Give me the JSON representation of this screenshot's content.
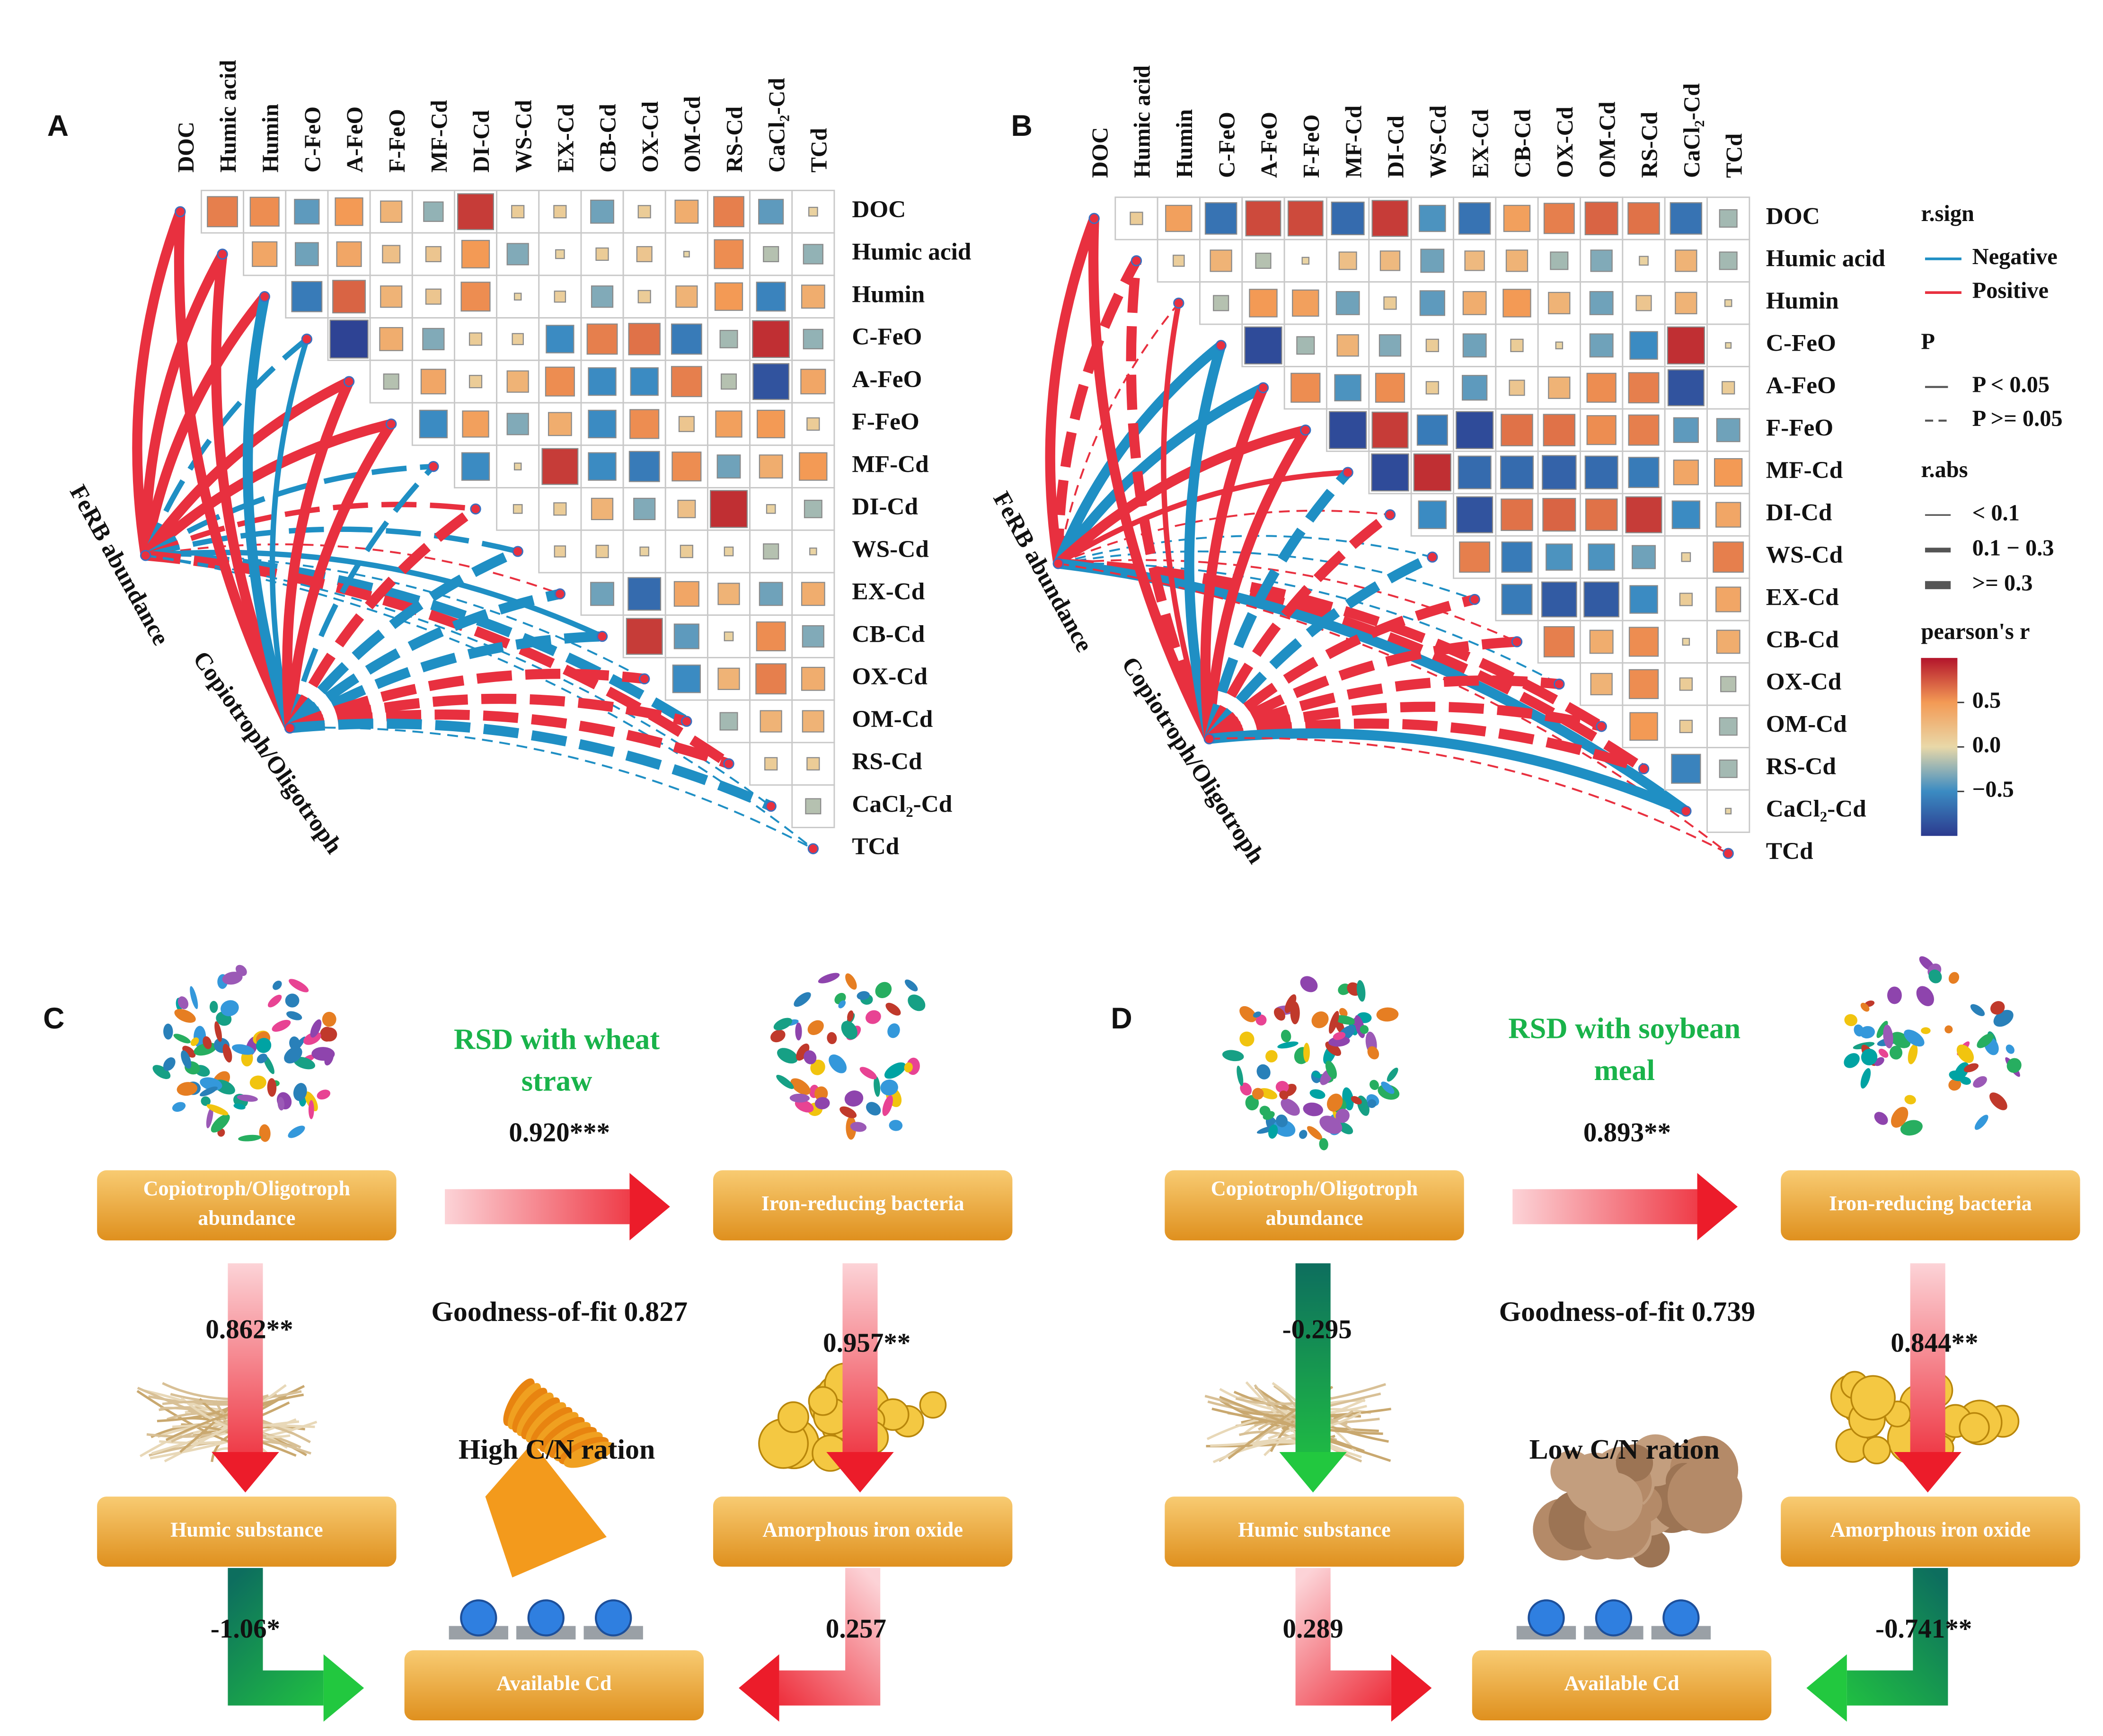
{
  "variables": [
    "DOC",
    "Humic acid",
    "Humin",
    "C-FeO",
    "A-FeO",
    "F-FeO",
    "MF-Cd",
    "DI-Cd",
    "WS-Cd",
    "EX-Cd",
    "CB-Cd",
    "OX-Cd",
    "OM-Cd",
    "RS-Cd",
    "CaCl₂-Cd",
    "TCd"
  ],
  "panels": [
    {
      "label": "A",
      "matrix": [
        [
          0.6,
          0.55,
          -0.4,
          0.5,
          0.3,
          -0.25,
          0.85,
          0.1,
          0.1,
          -0.35,
          0.1,
          0.35,
          0.6,
          -0.4,
          0.05
        ],
        [
          0.4,
          -0.35,
          0.4,
          0.2,
          0.15,
          0.5,
          -0.3,
          0.05,
          0.1,
          0.15,
          0.02,
          0.55,
          -0.15,
          -0.25
        ],
        [
          -0.6,
          0.7,
          0.3,
          0.15,
          0.55,
          0.03,
          0.08,
          -0.3,
          0.1,
          0.3,
          0.5,
          -0.55,
          0.35
        ],
        [
          -0.95,
          0.35,
          -0.3,
          0.1,
          0.08,
          -0.5,
          0.6,
          0.65,
          -0.6,
          -0.2,
          0.9,
          -0.25
        ],
        [
          -0.15,
          0.4,
          0.1,
          0.3,
          0.55,
          -0.5,
          -0.5,
          0.6,
          -0.15,
          -0.85,
          0.4
        ],
        [
          -0.5,
          0.45,
          -0.3,
          0.35,
          -0.5,
          0.55,
          0.15,
          0.45,
          0.5,
          0.1
        ],
        [
          -0.5,
          0.03,
          0.85,
          -0.5,
          -0.6,
          0.55,
          -0.35,
          0.35,
          0.5
        ],
        [
          0.05,
          0.1,
          0.3,
          -0.3,
          0.2,
          0.9,
          0.05,
          -0.2
        ],
        [
          0.08,
          0.1,
          0.05,
          0.1,
          0.05,
          -0.15,
          0.03
        ],
        [
          -0.35,
          -0.7,
          0.4,
          0.3,
          -0.35,
          0.35
        ],
        [
          0.85,
          -0.4,
          0.05,
          0.55,
          -0.3
        ],
        [
          -0.5,
          0.3,
          0.6,
          0.35
        ],
        [
          -0.2,
          0.3,
          0.3
        ],
        [
          0.1,
          0.1
        ],
        [
          -0.15
        ]
      ],
      "sources": [
        {
          "name": "FeRB abundance",
          "links": [
            [
              "Positive",
              "P < 0.05",
              ">= 0.3"
            ],
            [
              "Positive",
              "P < 0.05",
              ">= 0.3"
            ],
            [
              "Positive",
              "P < 0.05",
              ">= 0.3"
            ],
            [
              "Negative",
              "P >= 0.05",
              "0.1 − 0.3"
            ],
            [
              "Positive",
              "P < 0.05",
              ">= 0.3"
            ],
            [
              "Positive",
              "P < 0.05",
              ">= 0.3"
            ],
            [
              "Negative",
              "P >= 0.05",
              "0.1 − 0.3"
            ],
            [
              "Positive",
              "P >= 0.05",
              "0.1 − 0.3"
            ],
            [
              "Negative",
              "P >= 0.05",
              "0.1 − 0.3"
            ],
            [
              "Positive",
              "P >= 0.05",
              "< 0.1"
            ],
            [
              "Negative",
              "P < 0.05",
              "0.1 − 0.3"
            ],
            [
              "Negative",
              "P >= 0.05",
              "< 0.1"
            ],
            [
              "Negative",
              "P >= 0.05",
              ">= 0.3"
            ],
            [
              "Positive",
              "P >= 0.05",
              ">= 0.3"
            ],
            [
              "Negative",
              "P >= 0.05",
              "< 0.1"
            ],
            [
              "Negative",
              "P >= 0.05",
              "< 0.1"
            ]
          ]
        },
        {
          "name": "Copiotroph/Oligotroph",
          "links": [
            [
              "Positive",
              "P < 0.05",
              ">= 0.3"
            ],
            [
              "Positive",
              "P < 0.05",
              ">= 0.3"
            ],
            [
              "Negative",
              "P < 0.05",
              ">= 0.3"
            ],
            [
              "Negative",
              "P < 0.05",
              "0.1 − 0.3"
            ],
            [
              "Positive",
              "P < 0.05",
              ">= 0.3"
            ],
            [
              "Positive",
              "P < 0.05",
              ">= 0.3"
            ],
            [
              "Negative",
              "P >= 0.05",
              "0.1 − 0.3"
            ],
            [
              "Positive",
              "P >= 0.05",
              ">= 0.3"
            ],
            [
              "Negative",
              "P >= 0.05",
              ">= 0.3"
            ],
            [
              "Negative",
              "P >= 0.05",
              ">= 0.3"
            ],
            [
              "Negative",
              "P >= 0.05",
              ">= 0.3"
            ],
            [
              "Positive",
              "P >= 0.05",
              ">= 0.3"
            ],
            [
              "Positive",
              "P >= 0.05",
              ">= 0.3"
            ],
            [
              "Positive",
              "P >= 0.05",
              ">= 0.3"
            ],
            [
              "Negative",
              "P >= 0.05",
              ">= 0.3"
            ],
            [
              "Negative",
              "P >= 0.05",
              "< 0.1"
            ]
          ]
        }
      ]
    },
    {
      "label": "B",
      "matrix": [
        [
          0.1,
          0.45,
          -0.65,
          0.8,
          0.8,
          -0.7,
          0.85,
          -0.45,
          -0.65,
          0.45,
          0.6,
          0.7,
          0.65,
          -0.65,
          -0.2
        ],
        [
          0.08,
          0.3,
          -0.15,
          0.03,
          0.2,
          0.25,
          -0.35,
          0.25,
          0.3,
          -0.2,
          -0.3,
          0.05,
          0.3,
          -0.2
        ],
        [
          -0.15,
          0.5,
          0.45,
          -0.35,
          0.1,
          -0.4,
          0.35,
          0.5,
          0.3,
          -0.35,
          0.15,
          0.3,
          0.03
        ],
        [
          -0.9,
          -0.2,
          0.3,
          -0.3,
          0.1,
          -0.35,
          0.1,
          0.03,
          -0.35,
          -0.5,
          0.9,
          0.02
        ],
        [
          0.55,
          -0.45,
          0.55,
          0.1,
          -0.4,
          0.15,
          0.3,
          0.55,
          0.6,
          -0.85,
          0.1
        ],
        [
          -0.9,
          0.85,
          -0.6,
          -0.9,
          0.65,
          0.65,
          0.55,
          0.6,
          -0.4,
          -0.35
        ],
        [
          -0.9,
          0.9,
          -0.7,
          -0.7,
          -0.75,
          -0.7,
          -0.6,
          0.4,
          0.5
        ],
        [
          -0.5,
          -0.85,
          0.65,
          0.7,
          0.65,
          0.85,
          -0.5,
          0.4
        ],
        [
          0.6,
          -0.6,
          -0.45,
          -0.45,
          -0.35,
          0.05,
          0.6
        ],
        [
          -0.6,
          -0.8,
          -0.8,
          -0.5,
          0.1,
          0.4
        ],
        [
          0.6,
          0.35,
          0.55,
          0.03,
          0.35
        ],
        [
          0.3,
          0.55,
          0.1,
          -0.15
        ],
        [
          0.5,
          0.1,
          -0.2
        ],
        [
          -0.55,
          -0.2
        ],
        [
          0.02
        ]
      ],
      "sources": [
        {
          "name": "FeRB abundance",
          "links": [
            [
              "Positive",
              "P < 0.05",
              ">= 0.3"
            ],
            [
              "Positive",
              "P >= 0.05",
              ">= 0.3"
            ],
            [
              "Positive",
              "P >= 0.05",
              "< 0.1"
            ],
            [
              "Negative",
              "P < 0.05",
              ">= 0.3"
            ],
            [
              "Negative",
              "P < 0.05",
              ">= 0.3"
            ],
            [
              "Positive",
              "P < 0.05",
              ">= 0.3"
            ],
            [
              "Positive",
              "P < 0.05",
              "0.1 − 0.3"
            ],
            [
              "Positive",
              "P >= 0.05",
              "< 0.1"
            ],
            [
              "Negative",
              "P >= 0.05",
              "< 0.1"
            ],
            [
              "Negative",
              "P >= 0.05",
              "< 0.1"
            ],
            [
              "Positive",
              "P >= 0.05",
              "< 0.1"
            ],
            [
              "Negative",
              "P >= 0.05",
              "< 0.1"
            ],
            [
              "Positive",
              "P >= 0.05",
              ">= 0.3"
            ],
            [
              "Positive",
              "P >= 0.05",
              ">= 0.3"
            ],
            [
              "Negative",
              "P < 0.05",
              ">= 0.3"
            ],
            [
              "Positive",
              "P >= 0.05",
              "< 0.1"
            ]
          ]
        },
        {
          "name": "Copiotroph/Oligotroph",
          "links": [
            [
              "Positive",
              "P < 0.05",
              ">= 0.3"
            ],
            [
              "Positive",
              "P >= 0.05",
              ">= 0.3"
            ],
            [
              "Positive",
              "P < 0.05",
              "0.1 − 0.3"
            ],
            [
              "Negative",
              "P < 0.05",
              ">= 0.3"
            ],
            [
              "Positive",
              "P < 0.05",
              ">= 0.3"
            ],
            [
              "Positive",
              "P < 0.05",
              ">= 0.3"
            ],
            [
              "Negative",
              "P >= 0.05",
              ">= 0.3"
            ],
            [
              "Positive",
              "P >= 0.05",
              ">= 0.3"
            ],
            [
              "Negative",
              "P >= 0.05",
              ">= 0.3"
            ],
            [
              "Positive",
              "P >= 0.05",
              ">= 0.3"
            ],
            [
              "Positive",
              "P >= 0.05",
              ">= 0.3"
            ],
            [
              "Positive",
              "P >= 0.05",
              ">= 0.3"
            ],
            [
              "Positive",
              "P >= 0.05",
              ">= 0.3"
            ],
            [
              "Positive",
              "P >= 0.05",
              ">= 0.3"
            ],
            [
              "Negative",
              "P < 0.05",
              ">= 0.3"
            ],
            [
              "Positive",
              "P >= 0.05",
              "< 0.1"
            ]
          ]
        }
      ]
    }
  ],
  "legend": {
    "sign": {
      "title": "r.sign",
      "items": [
        "Negative",
        "Positive"
      ],
      "colors": [
        "#1f8fc4",
        "#e8303f"
      ]
    },
    "p": {
      "title": "P",
      "items": [
        "P < 0.05",
        "P >= 0.05"
      ]
    },
    "abs": {
      "title": "r.abs",
      "items": [
        "< 0.1",
        "0.1 − 0.3",
        ">= 0.3"
      ]
    },
    "colorbar": {
      "title": "pearson's r",
      "lim": [
        -1,
        1
      ],
      "ticks": [
        0.5,
        {
          "value": 0,
          "label": "0.0"
        },
        {
          "value": -0.5,
          "label": "−0.5"
        }
      ],
      "colors": [
        "#2c3b8f",
        "#3b8bc2",
        "#e9d8a8",
        "#f39a55",
        "#b3142b"
      ]
    }
  },
  "path_models": [
    {
      "label": "C",
      "title": [
        "RSD with wheat",
        "straw"
      ],
      "goodness_of_fit": "Goodness-of-fit 0.827",
      "cn_ratio": "High C/N ration",
      "boxes": {
        "community": [
          "Copiotroph/Oligotroph",
          "abundance"
        ],
        "ferb": [
          "Iron-reducing bacteria"
        ],
        "humic": [
          "Humic substance"
        ],
        "iron_oxide": [
          "Amorphous iron oxide"
        ],
        "cd": [
          "Available Cd"
        ]
      },
      "paths": {
        "community_ferb": "0.920***",
        "community_humic": "0.862**",
        "ferb_iron_oxide": "0.957**",
        "humic_cd": "-1.06*",
        "iron_oxide_cd": "0.257"
      }
    },
    {
      "label": "D",
      "title": [
        "RSD with soybean",
        "meal"
      ],
      "goodness_of_fit": "Goodness-of-fit 0.739",
      "cn_ratio": "Low C/N ration",
      "boxes": {
        "community": [
          "Copiotroph/Oligotroph",
          "abundance"
        ],
        "ferb": [
          "Iron-reducing bacteria"
        ],
        "humic": [
          "Humic substance"
        ],
        "iron_oxide": [
          "Amorphous iron oxide"
        ],
        "cd": [
          "Available Cd"
        ]
      },
      "paths": {
        "community_ferb": "0.893**",
        "community_humic": "-0.295",
        "ferb_iron_oxide": "0.844**",
        "humic_cd": "0.289",
        "iron_oxide_cd": "-0.741**"
      }
    }
  ]
}
